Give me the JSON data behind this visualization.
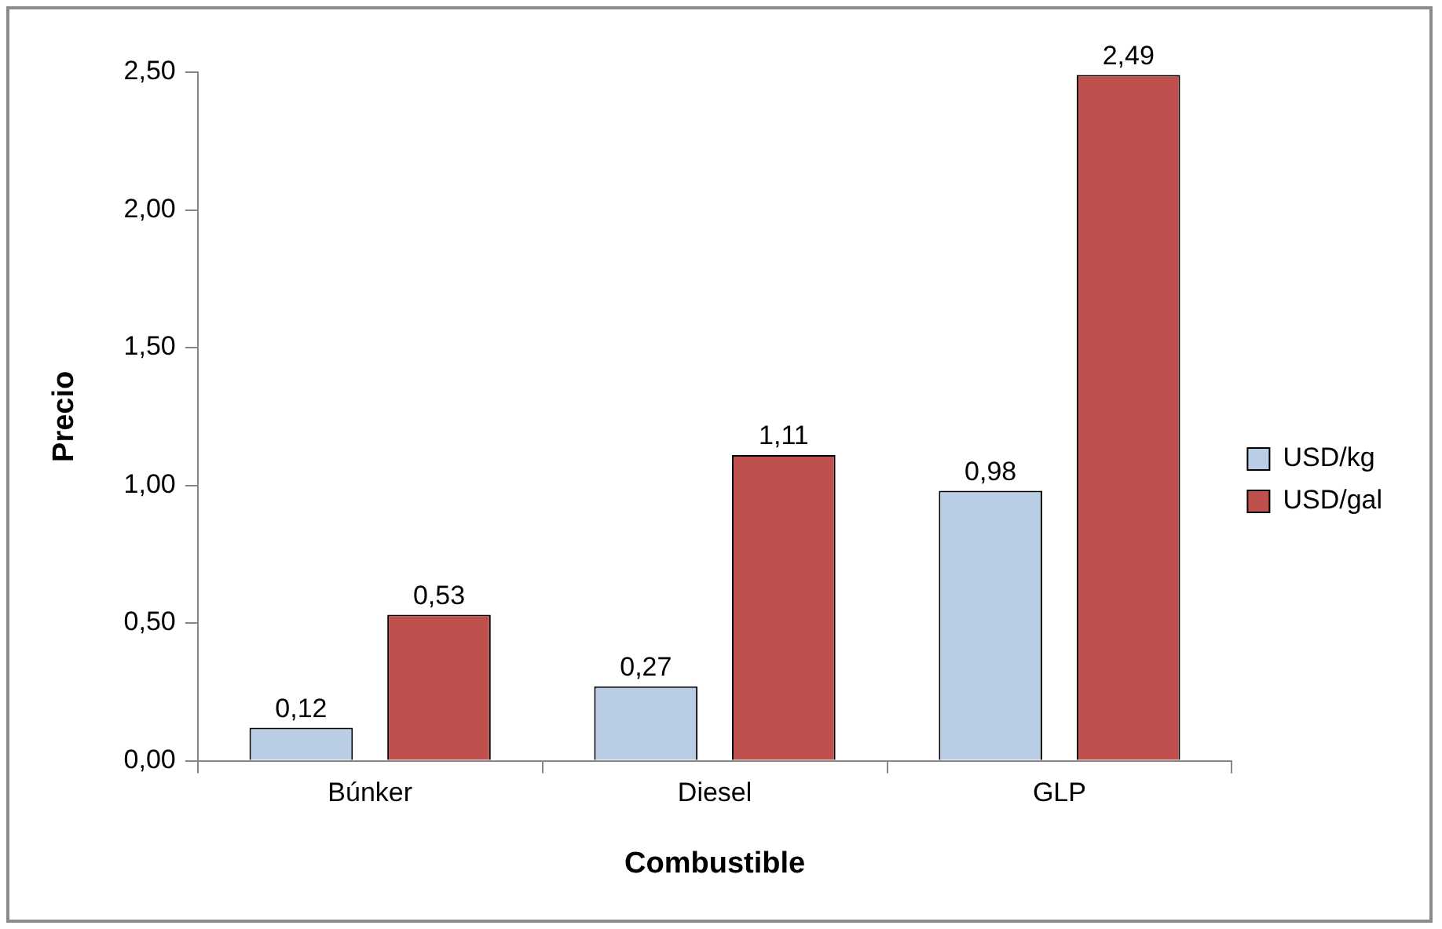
{
  "chart_data": {
    "type": "bar",
    "xlabel": "Combustible",
    "ylabel": "Precio",
    "categories": [
      "Búnker",
      "Diesel",
      "GLP"
    ],
    "series": [
      {
        "name": "USD/kg",
        "color": "#b9cde5",
        "values": [
          0.12,
          0.27,
          0.98
        ],
        "value_labels": [
          "0,12",
          "0,27",
          "0,98"
        ]
      },
      {
        "name": "USD/gal",
        "color": "#c0504d",
        "values": [
          0.53,
          1.11,
          2.49
        ],
        "value_labels": [
          "0,53",
          "1,11",
          "2,49"
        ]
      }
    ],
    "ylim": [
      0,
      2.5
    ],
    "yticks": [
      {
        "value": 0,
        "label": "0,00"
      },
      {
        "value": 0.5,
        "label": "0,50"
      },
      {
        "value": 1,
        "label": "1,00"
      },
      {
        "value": 1.5,
        "label": "1,50"
      },
      {
        "value": 2,
        "label": "2,00"
      },
      {
        "value": 2.5,
        "label": "2,50"
      }
    ],
    "grid": false,
    "legend": "right"
  }
}
